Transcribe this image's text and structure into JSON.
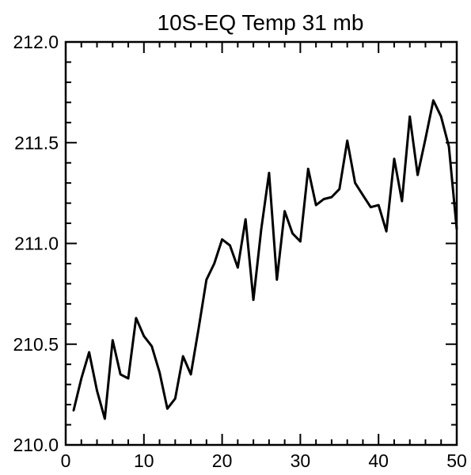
{
  "chart_data": {
    "type": "line",
    "title": "10S-EQ Temp 31 mb",
    "xlabel": "",
    "ylabel": "",
    "xlim": [
      0,
      50
    ],
    "ylim": [
      210.0,
      212.0
    ],
    "x_ticks": [
      0,
      10,
      20,
      30,
      40,
      50
    ],
    "x_tick_labels": [
      "0",
      "10",
      "20",
      "30",
      "40",
      "50"
    ],
    "y_ticks": [
      210.0,
      210.5,
      211.0,
      211.5,
      212.0
    ],
    "y_tick_labels": [
      "210.0",
      "210.5",
      "211.0",
      "211.5",
      "212.0"
    ],
    "grid": false,
    "line_color": "#000000",
    "series": [
      {
        "x": [
          1,
          2,
          3,
          4,
          5,
          6,
          7,
          8,
          9,
          10,
          11,
          12,
          13,
          14,
          15,
          16,
          17,
          18,
          19,
          20,
          21,
          22,
          23,
          24,
          25,
          26,
          27,
          28,
          29,
          30,
          31,
          32,
          33,
          34,
          35,
          36,
          37,
          38,
          39,
          40,
          41,
          42,
          43,
          44,
          45,
          46,
          47,
          48,
          49,
          50
        ],
        "values": [
          210.17,
          210.33,
          210.46,
          210.27,
          210.13,
          210.52,
          210.35,
          210.33,
          210.63,
          210.54,
          210.49,
          210.36,
          210.18,
          210.23,
          210.44,
          210.35,
          210.58,
          210.82,
          210.9,
          211.02,
          210.99,
          210.88,
          211.12,
          210.72,
          211.07,
          211.35,
          210.82,
          211.16,
          211.05,
          211.01,
          211.37,
          211.19,
          211.22,
          211.23,
          211.27,
          211.51,
          211.3,
          211.24,
          211.18,
          211.19,
          211.06,
          211.42,
          211.21,
          211.63,
          211.34,
          211.52,
          211.71,
          211.63,
          211.48,
          211.07
        ]
      }
    ]
  }
}
